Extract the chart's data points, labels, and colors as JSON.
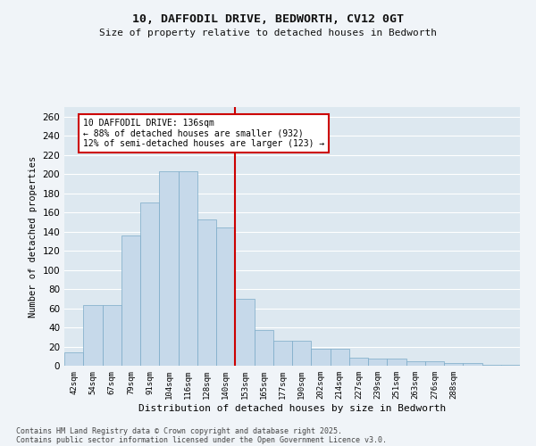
{
  "title1": "10, DAFFODIL DRIVE, BEDWORTH, CV12 0GT",
  "title2": "Size of property relative to detached houses in Bedworth",
  "xlabel": "Distribution of detached houses by size in Bedworth",
  "ylabel": "Number of detached properties",
  "bar_values": [
    14,
    63,
    63,
    136,
    170,
    203,
    203,
    153,
    144,
    70,
    37,
    26,
    26,
    18,
    18,
    8,
    7,
    7,
    5,
    5,
    3,
    3,
    1,
    1
  ],
  "bar_labels": [
    "42sqm",
    "54sqm",
    "67sqm",
    "79sqm",
    "91sqm",
    "104sqm",
    "116sqm",
    "128sqm",
    "140sqm",
    "153sqm",
    "165sqm",
    "177sqm",
    "190sqm",
    "202sqm",
    "214sqm",
    "227sqm",
    "239sqm",
    "251sqm",
    "263sqm",
    "276sqm",
    "288sqm",
    "",
    "",
    ""
  ],
  "bar_color": "#c6d9ea",
  "bar_edge_color": "#7aaac8",
  "background_color": "#dde8f0",
  "grid_color": "#ffffff",
  "vline_x": 8.5,
  "vline_color": "#cc0000",
  "ylim": [
    0,
    270
  ],
  "yticks": [
    0,
    20,
    40,
    60,
    80,
    100,
    120,
    140,
    160,
    180,
    200,
    220,
    240,
    260
  ],
  "annotation_title": "10 DAFFODIL DRIVE: 136sqm",
  "annotation_line1": "← 88% of detached houses are smaller (932)",
  "annotation_line2": "12% of semi-detached houses are larger (123) →",
  "annotation_box_color": "#ffffff",
  "annotation_box_edge": "#cc0000",
  "fig_bg": "#f0f4f8",
  "footer1": "Contains HM Land Registry data © Crown copyright and database right 2025.",
  "footer2": "Contains public sector information licensed under the Open Government Licence v3.0."
}
